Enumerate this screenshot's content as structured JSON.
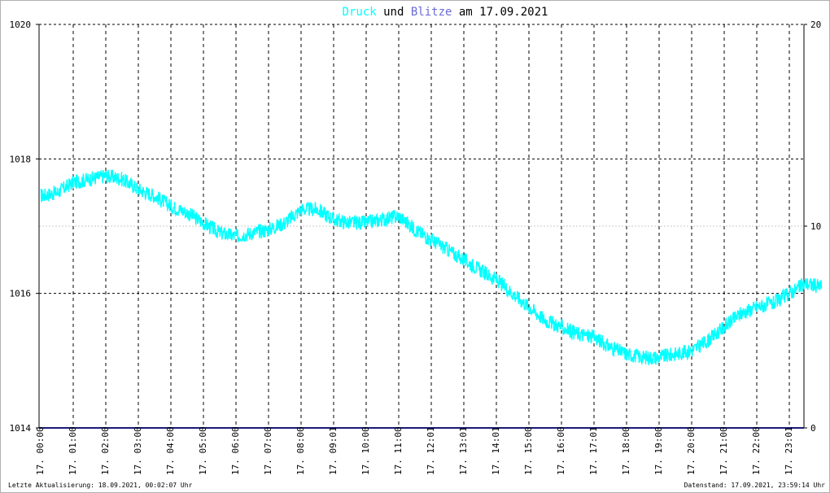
{
  "chart_data": {
    "type": "line",
    "title": {
      "part1": "Druck",
      "part2": " und ",
      "part3": "Blitze",
      "part4": " am 17.09.2021"
    },
    "colors": {
      "druck": "#00ffff",
      "blitze": "#6a6ad8",
      "text": "#000000",
      "grid": "#000000",
      "minor_grid": "#c8c8c8",
      "baseline": "#1a1a7a"
    },
    "y_left": {
      "min": 1014,
      "max": 1020,
      "ticks": [
        1014,
        1016,
        1018,
        1020
      ]
    },
    "y_right": {
      "min": 0,
      "max": 20,
      "ticks": [
        0,
        10,
        20
      ]
    },
    "x_ticks": [
      "17. 00:00",
      "17. 01:00",
      "17. 02:00",
      "17. 03:00",
      "17. 04:00",
      "17. 05:00",
      "17. 06:00",
      "17. 07:00",
      "17. 08:00",
      "17. 09:01",
      "17. 10:00",
      "17. 11:00",
      "17. 12:01",
      "17. 13:01",
      "17. 14:01",
      "17. 15:00",
      "17. 16:00",
      "17. 17:01",
      "17. 18:00",
      "17. 19:00",
      "17. 20:00",
      "17. 21:00",
      "17. 22:00",
      "17. 23:01"
    ],
    "grid": true,
    "series": [
      {
        "name": "Druck",
        "axis": "left",
        "hours": [
          0,
          0.5,
          1,
          1.5,
          2,
          2.5,
          3,
          3.5,
          4,
          4.5,
          5,
          5.5,
          6,
          6.5,
          7,
          7.5,
          8,
          8.5,
          9,
          9.5,
          10,
          10.5,
          11,
          11.5,
          12,
          12.5,
          13,
          13.5,
          14,
          14.5,
          15,
          15.5,
          16,
          16.5,
          17,
          17.5,
          18,
          18.5,
          19,
          19.5,
          20,
          20.5,
          21,
          21.5,
          22,
          22.5,
          23,
          23.5,
          24
        ],
        "values": [
          1017.45,
          1017.5,
          1017.65,
          1017.7,
          1017.75,
          1017.7,
          1017.55,
          1017.45,
          1017.3,
          1017.2,
          1017.05,
          1016.9,
          1016.85,
          1016.9,
          1016.95,
          1017.05,
          1017.25,
          1017.25,
          1017.1,
          1017.05,
          1017.05,
          1017.1,
          1017.15,
          1016.95,
          1016.8,
          1016.65,
          1016.5,
          1016.35,
          1016.2,
          1016.0,
          1015.8,
          1015.6,
          1015.5,
          1015.4,
          1015.35,
          1015.2,
          1015.1,
          1015.05,
          1015.05,
          1015.1,
          1015.15,
          1015.3,
          1015.5,
          1015.7,
          1015.8,
          1015.85,
          1016.0,
          1016.15,
          1016.1
        ]
      },
      {
        "name": "Blitze",
        "axis": "right",
        "hours": [
          0,
          24
        ],
        "values": [
          0,
          0
        ]
      }
    ]
  },
  "footer": {
    "left": "Letzte Aktualisierung: 18.09.2021, 00:02:07 Uhr",
    "right": "Datenstand: 17.09.2021, 23:59:14 Uhr"
  }
}
